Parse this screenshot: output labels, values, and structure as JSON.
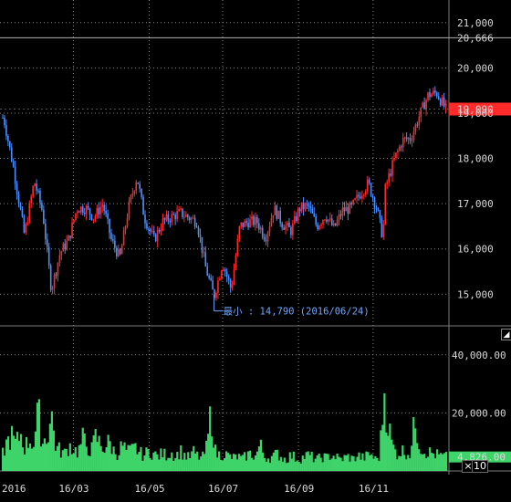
{
  "chart_data": [
    {
      "type": "candlestick",
      "title": "",
      "colors": {
        "up": "#ff2a2a",
        "down": "#4a8fff",
        "background": "#000000",
        "grid": "#8a8a8a"
      },
      "ylim": [
        14300,
        21500
      ],
      "y_ticks": [
        "21,000",
        "20,000",
        "19,000",
        "18,000",
        "17,000",
        "16,000",
        "15,000"
      ],
      "price_markers": [
        {
          "label": "20,666",
          "value": 20666,
          "style": "line"
        },
        {
          "label": "19,090",
          "value": 19090,
          "style": "current",
          "color": "#ff2a2a"
        }
      ],
      "grid": true,
      "annotation": {
        "text": "最小 : 14,790 (2016/06/24)",
        "value": 14790
      },
      "series_close_approx": [
        [
          "2016/01/04",
          18900
        ],
        [
          "2016/01/12",
          17800
        ],
        [
          "2016/01/21",
          16300
        ],
        [
          "2016/01/29",
          17500
        ],
        [
          "2016/02/05",
          16800
        ],
        [
          "2016/02/12",
          15100
        ],
        [
          "2016/02/19",
          15900
        ],
        [
          "2016/02/26",
          16200
        ],
        [
          "2016/03/04",
          16900
        ],
        [
          "2016/03/11",
          16900
        ],
        [
          "2016/03/18",
          16700
        ],
        [
          "2016/03/25",
          17000
        ],
        [
          "2016/04/01",
          16200
        ],
        [
          "2016/04/08",
          15800
        ],
        [
          "2016/04/15",
          16900
        ],
        [
          "2016/04/22",
          17600
        ],
        [
          "2016/04/28",
          16700
        ],
        [
          "2016/05/06",
          16200
        ],
        [
          "2016/05/13",
          16600
        ],
        [
          "2016/05/20",
          16700
        ],
        [
          "2016/05/27",
          16800
        ],
        [
          "2016/06/03",
          16700
        ],
        [
          "2016/06/10",
          16600
        ],
        [
          "2016/06/17",
          15600
        ],
        [
          "2016/06/24",
          14950
        ],
        [
          "2016/07/01",
          15700
        ],
        [
          "2016/07/08",
          15100
        ],
        [
          "2016/07/15",
          16500
        ],
        [
          "2016/07/22",
          16600
        ],
        [
          "2016/07/29",
          16600
        ],
        [
          "2016/08/05",
          16250
        ],
        [
          "2016/08/12",
          16900
        ],
        [
          "2016/08/19",
          16550
        ],
        [
          "2016/08/26",
          16400
        ],
        [
          "2016/09/02",
          16900
        ],
        [
          "2016/09/09",
          16950
        ],
        [
          "2016/09/16",
          16500
        ],
        [
          "2016/09/23",
          16750
        ],
        [
          "2016/09/30",
          16450
        ],
        [
          "2016/10/07",
          16850
        ],
        [
          "2016/10/14",
          16900
        ],
        [
          "2016/10/21",
          17200
        ],
        [
          "2016/10/28",
          17450
        ],
        [
          "2016/11/04",
          16900
        ],
        [
          "2016/11/09",
          16250
        ],
        [
          "2016/11/11",
          17350
        ],
        [
          "2016/11/18",
          17950
        ],
        [
          "2016/11/25",
          18400
        ],
        [
          "2016/12/02",
          18450
        ],
        [
          "2016/12/09",
          18950
        ],
        [
          "2016/12/16",
          19400
        ],
        [
          "2016/12/23",
          19450
        ],
        [
          "2016/12/30",
          19100
        ]
      ]
    },
    {
      "type": "bar",
      "color": "#3fd46a",
      "ylim": [
        0,
        50000
      ],
      "y_ticks": [
        "40,000.00",
        "20,000.00"
      ],
      "current_label": "4,826.00",
      "series_values_approx": [
        6000,
        10000,
        12000,
        9000,
        13000,
        8000,
        11000,
        9500,
        20000,
        10000,
        12000,
        19000,
        8000,
        7000,
        6000,
        9000,
        7500,
        6500,
        11000,
        8500,
        7000,
        12000,
        9000,
        8000,
        10000,
        7000,
        6000,
        9000,
        6500,
        7000,
        8000,
        6000,
        5500,
        7000,
        6000,
        5000,
        6000,
        5500,
        6500,
        5000,
        7000,
        5500,
        4500,
        6500,
        5000,
        4500,
        8000,
        21000,
        6000,
        5500,
        6000,
        5000,
        4500,
        5000,
        4000,
        5500,
        6000,
        5000,
        9000,
        5000,
        4500,
        5000,
        6000,
        4500,
        4000,
        5500,
        4500,
        4000,
        5000,
        5500,
        4500,
        4000,
        5000,
        4500,
        5500,
        5000,
        4000,
        4500,
        5000,
        4000,
        5500,
        4500,
        5000,
        6000,
        4000,
        5000,
        28000,
        15000,
        8000,
        6000,
        7000,
        6500,
        6000,
        18000,
        9000,
        7000,
        6500,
        6000,
        5500,
        5000,
        4800
      ]
    }
  ],
  "x_labels": [
    "2016",
    "16/03",
    "16/05",
    "16/07",
    "16/09",
    "16/11"
  ],
  "controls": {
    "close_label": "×",
    "zoom_label": "10"
  }
}
